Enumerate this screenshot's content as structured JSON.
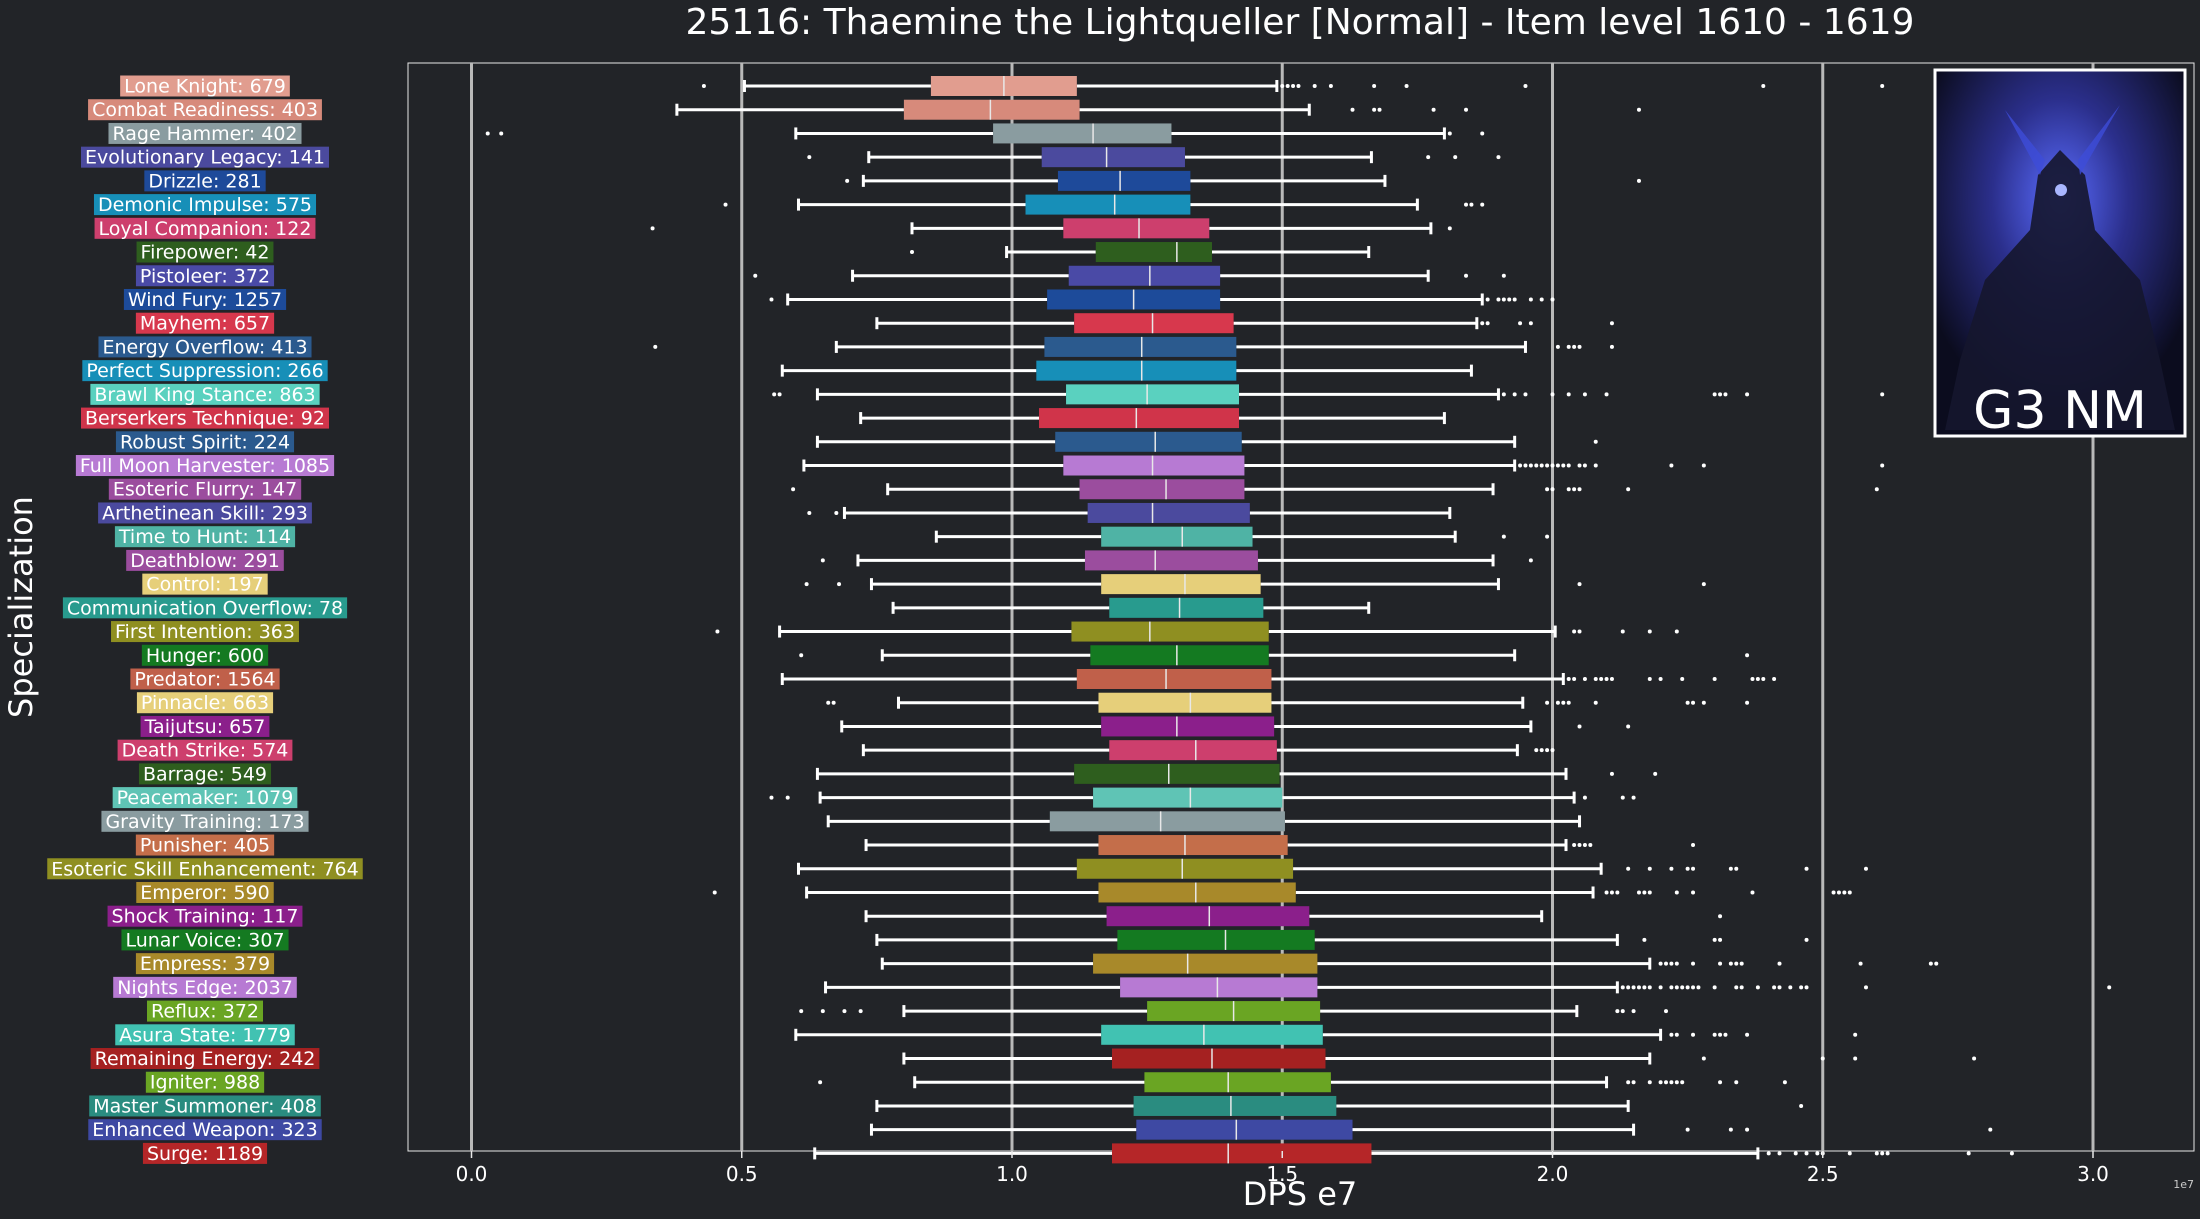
{
  "chart_data": {
    "type": "boxplot",
    "title": "25116: Thaemine the Lightqueller [Normal] - Item level 1610 - 1619",
    "xlabel": "DPS e7",
    "ylabel": "Specialization",
    "x_scale_note": "1e7",
    "xlim": [
      -0.115,
      3.2
    ],
    "xticks": [
      0.0,
      0.5,
      1.0,
      1.5,
      2.0,
      2.5,
      3.0
    ],
    "xtick_labels": [
      "0.0",
      "0.5",
      "1.0",
      "1.5",
      "2.0",
      "2.5",
      "3.0"
    ],
    "grid": "vertical",
    "inset_label": "G3 NM",
    "series": [
      {
        "label": "Lone Knight: 679",
        "color": "#e19d8f",
        "whisker_low": 0.505,
        "q1": 0.85,
        "median": 0.985,
        "q3": 1.12,
        "whisker_high": 1.49,
        "outliers": [
          0.43,
          1.5,
          1.51,
          1.52,
          1.53,
          1.56,
          1.59,
          1.67,
          1.73,
          1.95,
          2.39,
          2.61
        ]
      },
      {
        "label": "Combat Readiness: 403",
        "color": "#d78a7b",
        "whisker_low": 0.38,
        "q1": 0.8,
        "median": 0.96,
        "q3": 1.125,
        "whisker_high": 1.55,
        "outliers": [
          1.63,
          1.67,
          1.68,
          1.78,
          1.84,
          2.16
        ]
      },
      {
        "label": "Rage Hammer: 402",
        "color": "#8a9ca0",
        "whisker_low": 0.6,
        "q1": 0.965,
        "median": 1.15,
        "q3": 1.295,
        "whisker_high": 1.8,
        "outliers": [
          0.03,
          0.055,
          1.81,
          1.87
        ]
      },
      {
        "label": "Evolutionary Legacy: 141",
        "color": "#4b4a9e",
        "whisker_low": 0.735,
        "q1": 1.055,
        "median": 1.175,
        "q3": 1.32,
        "whisker_high": 1.665,
        "outliers": [
          0.625,
          1.77,
          1.82,
          1.9
        ]
      },
      {
        "label": "Drizzle: 281",
        "color": "#1e4a9a",
        "whisker_low": 0.725,
        "q1": 1.085,
        "median": 1.2,
        "q3": 1.33,
        "whisker_high": 1.69,
        "outliers": [
          0.695,
          2.16
        ]
      },
      {
        "label": "Demonic Impulse: 575",
        "color": "#178fb8",
        "whisker_low": 0.605,
        "q1": 1.025,
        "median": 1.19,
        "q3": 1.33,
        "whisker_high": 1.75,
        "outliers": [
          0.47,
          1.84,
          1.85,
          1.87
        ]
      },
      {
        "label": "Loyal Companion: 122",
        "color": "#cd3f6d",
        "whisker_low": 0.815,
        "q1": 1.095,
        "median": 1.235,
        "q3": 1.365,
        "whisker_high": 1.775,
        "outliers": [
          0.335,
          1.81
        ]
      },
      {
        "label": "Firepower: 42",
        "color": "#2e5e1e",
        "whisker_low": 0.99,
        "q1": 1.155,
        "median": 1.305,
        "q3": 1.37,
        "whisker_high": 1.66,
        "outliers": [
          0.815
        ]
      },
      {
        "label": "Pistoleer: 372",
        "color": "#4a4aa6",
        "whisker_low": 0.705,
        "q1": 1.105,
        "median": 1.255,
        "q3": 1.385,
        "whisker_high": 1.77,
        "outliers": [
          0.525,
          1.84,
          1.91
        ]
      },
      {
        "label": "Wind Fury: 1257",
        "color": "#1d4b9a",
        "whisker_low": 0.585,
        "q1": 1.065,
        "median": 1.225,
        "q3": 1.385,
        "whisker_high": 1.87,
        "outliers": [
          0.555,
          1.88,
          1.9,
          1.91,
          1.92,
          1.93,
          1.96,
          1.98,
          2.0
        ]
      },
      {
        "label": "Mayhem: 657",
        "color": "#d7384d",
        "whisker_low": 0.75,
        "q1": 1.115,
        "median": 1.26,
        "q3": 1.41,
        "whisker_high": 1.86,
        "outliers": [
          1.87,
          1.88,
          1.94,
          1.96,
          2.11
        ]
      },
      {
        "label": "Energy Overflow: 413",
        "color": "#2b5a8e",
        "whisker_low": 0.675,
        "q1": 1.06,
        "median": 1.24,
        "q3": 1.415,
        "whisker_high": 1.95,
        "outliers": [
          0.34,
          2.01,
          2.03,
          2.04,
          2.05,
          2.11
        ]
      },
      {
        "label": "Perfect Suppression: 266",
        "color": "#178fb8",
        "whisker_low": 0.575,
        "q1": 1.045,
        "median": 1.24,
        "q3": 1.415,
        "whisker_high": 1.85,
        "outliers": []
      },
      {
        "label": "Brawl King Stance: 863",
        "color": "#5ad1bf",
        "whisker_low": 0.64,
        "q1": 1.1,
        "median": 1.25,
        "q3": 1.42,
        "whisker_high": 1.9,
        "outliers": [
          0.56,
          0.57,
          1.91,
          1.93,
          1.95,
          2.0,
          2.03,
          2.06,
          2.1,
          2.3,
          2.31,
          2.32,
          2.36,
          2.61
        ]
      },
      {
        "label": "Berserkers Technique: 92",
        "color": "#d0344a",
        "whisker_low": 0.72,
        "q1": 1.05,
        "median": 1.23,
        "q3": 1.42,
        "whisker_high": 1.8,
        "outliers": []
      },
      {
        "label": "Robust Spirit: 224",
        "color": "#2b5a8e",
        "whisker_low": 0.64,
        "q1": 1.08,
        "median": 1.265,
        "q3": 1.425,
        "whisker_high": 1.93,
        "outliers": [
          2.08
        ]
      },
      {
        "label": "Full Moon Harvester: 1085",
        "color": "#b77ad3",
        "whisker_low": 0.615,
        "q1": 1.095,
        "median": 1.26,
        "q3": 1.43,
        "whisker_high": 1.93,
        "outliers": [
          1.94,
          1.95,
          1.96,
          1.97,
          1.98,
          1.99,
          2.0,
          2.01,
          2.02,
          2.03,
          2.05,
          2.06,
          2.08,
          2.22,
          2.28,
          2.61
        ]
      },
      {
        "label": "Esoteric Flurry: 147",
        "color": "#9b4d9e",
        "whisker_low": 0.77,
        "q1": 1.125,
        "median": 1.285,
        "q3": 1.43,
        "whisker_high": 1.89,
        "outliers": [
          0.595,
          1.99,
          2.0,
          2.03,
          2.04,
          2.05,
          2.14,
          2.6
        ]
      },
      {
        "label": "Arthetinean Skill: 293",
        "color": "#4b4a9e",
        "whisker_low": 0.69,
        "q1": 1.14,
        "median": 1.26,
        "q3": 1.44,
        "whisker_high": 1.81,
        "outliers": [
          0.625,
          0.675
        ]
      },
      {
        "label": "Time to Hunt: 114",
        "color": "#4fb3a5",
        "whisker_low": 0.86,
        "q1": 1.165,
        "median": 1.315,
        "q3": 1.445,
        "whisker_high": 1.82,
        "outliers": [
          1.91,
          1.99
        ]
      },
      {
        "label": "Deathblow: 291",
        "color": "#9b4d9e",
        "whisker_low": 0.715,
        "q1": 1.135,
        "median": 1.265,
        "q3": 1.455,
        "whisker_high": 1.89,
        "outliers": [
          0.65,
          1.96
        ]
      },
      {
        "label": "Control: 197",
        "color": "#e6cf7a",
        "whisker_low": 0.74,
        "q1": 1.165,
        "median": 1.32,
        "q3": 1.46,
        "whisker_high": 1.9,
        "outliers": [
          0.62,
          0.68,
          2.05,
          2.28
        ]
      },
      {
        "label": "Communication Overflow: 78",
        "color": "#289b8e",
        "whisker_low": 0.78,
        "q1": 1.18,
        "median": 1.31,
        "q3": 1.465,
        "whisker_high": 1.66,
        "outliers": []
      },
      {
        "label": "First Intention: 363",
        "color": "#8f8f21",
        "whisker_low": 0.57,
        "q1": 1.11,
        "median": 1.255,
        "q3": 1.475,
        "whisker_high": 2.005,
        "outliers": [
          0.455,
          2.04,
          2.05,
          2.13,
          2.18,
          2.23
        ]
      },
      {
        "label": "Hunger: 600",
        "color": "#147a21",
        "whisker_low": 0.76,
        "q1": 1.145,
        "median": 1.305,
        "q3": 1.475,
        "whisker_high": 1.93,
        "outliers": [
          0.61,
          2.36
        ]
      },
      {
        "label": "Predator: 1564",
        "color": "#c0604a",
        "whisker_low": 0.575,
        "q1": 1.12,
        "median": 1.285,
        "q3": 1.48,
        "whisker_high": 2.02,
        "outliers": [
          2.03,
          2.04,
          2.06,
          2.08,
          2.09,
          2.1,
          2.11,
          2.18,
          2.2,
          2.24,
          2.3,
          2.37,
          2.38,
          2.39,
          2.41
        ]
      },
      {
        "label": "Pinnacle: 663",
        "color": "#e6cf7a",
        "whisker_low": 0.79,
        "q1": 1.16,
        "median": 1.33,
        "q3": 1.48,
        "whisker_high": 1.945,
        "outliers": [
          0.66,
          0.67,
          1.99,
          2.01,
          2.02,
          2.03,
          2.08,
          2.25,
          2.26,
          2.28,
          2.36
        ]
      },
      {
        "label": "Taijutsu: 657",
        "color": "#8b1f8b",
        "whisker_low": 0.685,
        "q1": 1.165,
        "median": 1.305,
        "q3": 1.485,
        "whisker_high": 1.96,
        "outliers": [
          2.05,
          2.14
        ]
      },
      {
        "label": "Death Strike: 574",
        "color": "#cd3f6d",
        "whisker_low": 0.725,
        "q1": 1.18,
        "median": 1.34,
        "q3": 1.49,
        "whisker_high": 1.935,
        "outliers": [
          1.97,
          1.98,
          1.99,
          2.0
        ]
      },
      {
        "label": "Barrage: 549",
        "color": "#2e5e1e",
        "whisker_low": 0.64,
        "q1": 1.115,
        "median": 1.29,
        "q3": 1.495,
        "whisker_high": 2.025,
        "outliers": [
          2.11,
          2.19
        ]
      },
      {
        "label": "Peacemaker: 1079",
        "color": "#5fc4b5",
        "whisker_low": 0.645,
        "q1": 1.15,
        "median": 1.33,
        "q3": 1.5,
        "whisker_high": 2.04,
        "outliers": [
          0.555,
          0.585,
          2.06,
          2.13,
          2.15
        ]
      },
      {
        "label": "Gravity Training: 173",
        "color": "#8a9ca0",
        "whisker_low": 0.66,
        "q1": 1.07,
        "median": 1.275,
        "q3": 1.505,
        "whisker_high": 2.05,
        "outliers": []
      },
      {
        "label": "Punisher: 405",
        "color": "#c46e4a",
        "whisker_low": 0.73,
        "q1": 1.16,
        "median": 1.32,
        "q3": 1.51,
        "whisker_high": 2.025,
        "outliers": [
          2.04,
          2.05,
          2.06,
          2.07,
          2.26
        ]
      },
      {
        "label": "Esoteric Skill Enhancement: 764",
        "color": "#8f8f21",
        "whisker_low": 0.605,
        "q1": 1.12,
        "median": 1.315,
        "q3": 1.52,
        "whisker_high": 2.09,
        "outliers": [
          2.14,
          2.18,
          2.22,
          2.25,
          2.26,
          2.33,
          2.34,
          2.47,
          2.58
        ]
      },
      {
        "label": "Emperor: 590",
        "color": "#a8892a",
        "whisker_low": 0.62,
        "q1": 1.16,
        "median": 1.34,
        "q3": 1.525,
        "whisker_high": 2.075,
        "outliers": [
          0.45,
          2.1,
          2.11,
          2.12,
          2.16,
          2.17,
          2.18,
          2.23,
          2.26,
          2.37,
          2.52,
          2.53,
          2.54,
          2.55
        ]
      },
      {
        "label": "Shock Training: 117",
        "color": "#8b1f8b",
        "whisker_low": 0.73,
        "q1": 1.175,
        "median": 1.365,
        "q3": 1.55,
        "whisker_high": 1.98,
        "outliers": [
          2.31
        ]
      },
      {
        "label": "Lunar Voice: 307",
        "color": "#147a21",
        "whisker_low": 0.75,
        "q1": 1.195,
        "median": 1.395,
        "q3": 1.56,
        "whisker_high": 2.12,
        "outliers": [
          2.17,
          2.3,
          2.31,
          2.47
        ]
      },
      {
        "label": "Empress: 379",
        "color": "#a8892a",
        "whisker_low": 0.76,
        "q1": 1.15,
        "median": 1.325,
        "q3": 1.565,
        "whisker_high": 2.18,
        "outliers": [
          2.2,
          2.21,
          2.22,
          2.23,
          2.26,
          2.31,
          2.33,
          2.34,
          2.35,
          2.42,
          2.57,
          2.7,
          2.71
        ]
      },
      {
        "label": "Nights Edge: 2037",
        "color": "#b77ad3",
        "whisker_low": 0.655,
        "q1": 1.2,
        "median": 1.38,
        "q3": 1.565,
        "whisker_high": 2.12,
        "outliers": [
          2.13,
          2.14,
          2.15,
          2.16,
          2.17,
          2.18,
          2.2,
          2.22,
          2.23,
          2.24,
          2.25,
          2.26,
          2.27,
          2.3,
          2.34,
          2.35,
          2.38,
          2.41,
          2.42,
          2.44,
          2.46,
          2.47,
          2.58,
          3.03
        ]
      },
      {
        "label": "Reflux: 372",
        "color": "#6aa523",
        "whisker_low": 0.8,
        "q1": 1.25,
        "median": 1.41,
        "q3": 1.57,
        "whisker_high": 2.045,
        "outliers": [
          0.61,
          0.65,
          0.69,
          0.72,
          2.12,
          2.13,
          2.15,
          2.21
        ]
      },
      {
        "label": "Asura State: 1779",
        "color": "#41c2b2",
        "whisker_low": 0.6,
        "q1": 1.165,
        "median": 1.355,
        "q3": 1.575,
        "whisker_high": 2.2,
        "outliers": [
          2.22,
          2.23,
          2.26,
          2.3,
          2.31,
          2.32,
          2.36,
          2.56
        ]
      },
      {
        "label": "Remaining Energy: 242",
        "color": "#a52121",
        "whisker_low": 0.8,
        "q1": 1.185,
        "median": 1.37,
        "q3": 1.58,
        "whisker_high": 2.18,
        "outliers": [
          2.28,
          2.5,
          2.56,
          2.78
        ]
      },
      {
        "label": "Igniter: 988",
        "color": "#6aa523",
        "whisker_low": 0.82,
        "q1": 1.245,
        "median": 1.4,
        "q3": 1.59,
        "whisker_high": 2.1,
        "outliers": [
          0.645,
          2.14,
          2.15,
          2.18,
          2.2,
          2.21,
          2.22,
          2.23,
          2.24,
          2.31,
          2.34,
          2.43
        ]
      },
      {
        "label": "Master Summoner: 408",
        "color": "#2a8c80",
        "whisker_low": 0.75,
        "q1": 1.225,
        "median": 1.405,
        "q3": 1.6,
        "whisker_high": 2.14,
        "outliers": [
          2.46
        ]
      },
      {
        "label": "Enhanced Weapon: 323",
        "color": "#3e49a3",
        "whisker_low": 0.74,
        "q1": 1.23,
        "median": 1.415,
        "q3": 1.63,
        "whisker_high": 2.15,
        "outliers": [
          2.25,
          2.33,
          2.36,
          2.81
        ]
      },
      {
        "label": "Surge: 1189",
        "color": "#b52628",
        "whisker_low": 0.635,
        "q1": 1.185,
        "median": 1.4,
        "q3": 1.665,
        "whisker_high": 2.38,
        "outliers": [
          2.4,
          2.42,
          2.45,
          2.47,
          2.49,
          2.5,
          2.55,
          2.6,
          2.61,
          2.62,
          2.77,
          2.85
        ]
      }
    ]
  }
}
